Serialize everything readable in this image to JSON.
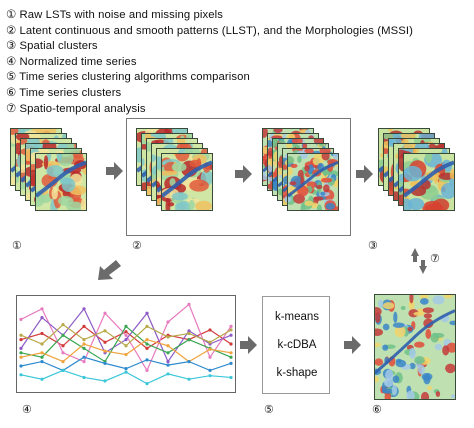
{
  "legend": [
    {
      "num": "①",
      "text": "Raw LSTs with noise and missing pixels"
    },
    {
      "num": "②",
      "text": "Latent continuous and smooth patterns (LLST), and the Morphologies (MSSI)"
    },
    {
      "num": "③",
      "text": "Spatial clusters"
    },
    {
      "num": "④",
      "text": "Normalized time series"
    },
    {
      "num": "⑤",
      "text": "Time series clustering algorithms comparison"
    },
    {
      "num": "⑥",
      "text": "Time series clusters"
    },
    {
      "num": "⑦",
      "text": "Spatio-temporal analysis"
    }
  ],
  "steps": {
    "s1": "①",
    "s2": "②",
    "s3": "③",
    "s4": "④",
    "s5": "⑤",
    "s6": "⑥",
    "s7": "⑦"
  },
  "algorithms": [
    "k-means",
    "k-cDBA",
    "k-shape"
  ],
  "colors": {
    "arrow": "#6b6b6b",
    "box": "#777777"
  },
  "chart_data": {
    "type": "line",
    "title": "",
    "xlabel": "",
    "ylabel": "",
    "x": [
      1,
      2,
      3,
      4,
      5,
      6,
      7,
      8,
      9,
      10,
      11
    ],
    "ylim": [
      0,
      1
    ],
    "series": [
      {
        "color": "#d23a3a",
        "values": [
          0.55,
          0.62,
          0.48,
          0.7,
          0.52,
          0.64,
          0.45,
          0.6,
          0.55,
          0.66,
          0.5
        ]
      },
      {
        "color": "#e87ac0",
        "values": [
          0.78,
          0.9,
          0.4,
          0.3,
          0.85,
          0.6,
          0.2,
          0.75,
          0.95,
          0.35,
          0.7
        ]
      },
      {
        "color": "#8e5bc6",
        "values": [
          0.45,
          0.8,
          0.6,
          0.9,
          0.4,
          0.55,
          0.85,
          0.3,
          0.65,
          0.5,
          0.6
        ]
      },
      {
        "color": "#3aa653",
        "values": [
          0.4,
          0.35,
          0.6,
          0.45,
          0.3,
          0.7,
          0.5,
          0.4,
          0.55,
          0.45,
          0.35
        ]
      },
      {
        "color": "#f0a23c",
        "values": [
          0.35,
          0.4,
          0.3,
          0.5,
          0.42,
          0.38,
          0.55,
          0.48,
          0.3,
          0.44,
          0.4
        ]
      },
      {
        "color": "#2e8bcf",
        "values": [
          0.25,
          0.3,
          0.2,
          0.35,
          0.28,
          0.22,
          0.32,
          0.26,
          0.3,
          0.2,
          0.28
        ]
      },
      {
        "color": "#3cc7d9",
        "values": [
          0.15,
          0.1,
          0.2,
          0.12,
          0.08,
          0.18,
          0.05,
          0.16,
          0.1,
          0.14,
          0.12
        ]
      },
      {
        "color": "#b8a94a",
        "values": [
          0.6,
          0.5,
          0.72,
          0.55,
          0.65,
          0.48,
          0.7,
          0.58,
          0.62,
          0.52,
          0.66
        ]
      }
    ]
  }
}
